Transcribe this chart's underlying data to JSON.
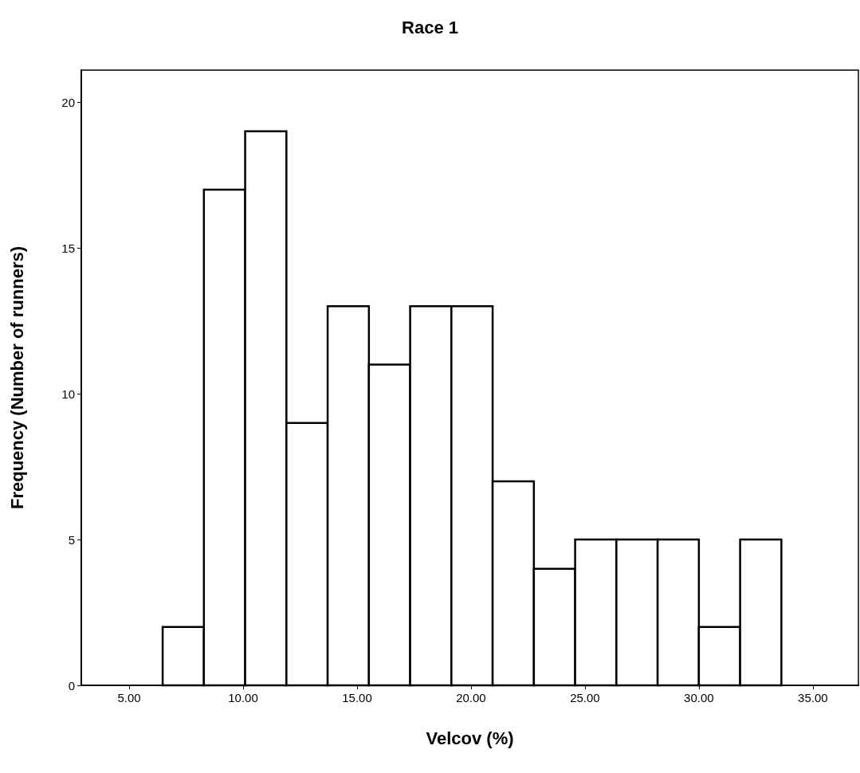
{
  "chart_data": {
    "type": "histogram",
    "title": "Race 1",
    "xlabel": "Velcov (%)",
    "ylabel": "Frequency (Number of runners)",
    "bins": [
      6.47,
      8.28,
      10.09,
      11.9,
      13.71,
      15.52,
      17.33,
      19.14,
      20.95,
      22.76,
      24.57,
      26.38,
      28.19,
      30.0,
      31.81,
      33.62
    ],
    "values": [
      2,
      17,
      19,
      9,
      13,
      11,
      13,
      13,
      7,
      4,
      5,
      5,
      5,
      2,
      5
    ],
    "color": "#ffffff",
    "xlim": [
      2.9,
      37
    ],
    "xticks": [
      {
        "value": 5,
        "label": "5.00"
      },
      {
        "value": 10,
        "label": "10.00"
      },
      {
        "value": 15,
        "label": "15.00"
      },
      {
        "value": 20,
        "label": "20.00"
      },
      {
        "value": 25,
        "label": "25.00"
      },
      {
        "value": 30,
        "label": "30.00"
      },
      {
        "value": 35,
        "label": "35.00"
      }
    ],
    "ylim": [
      0,
      21.1
    ],
    "yticks": [
      0,
      5,
      10,
      15,
      20
    ],
    "grid": false
  }
}
